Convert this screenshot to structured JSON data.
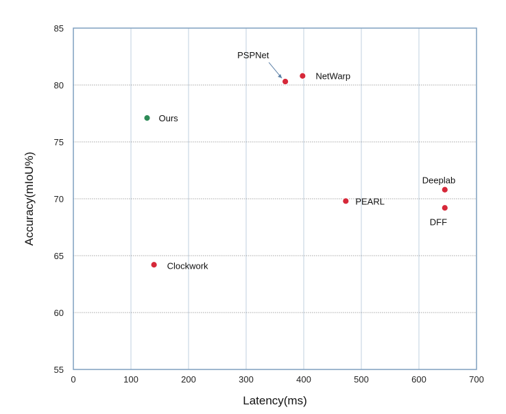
{
  "chart_data": {
    "type": "scatter",
    "title": "",
    "xlabel": "Latency(ms)",
    "ylabel": "Accuracy(mIoU%)",
    "xlim": [
      0,
      700
    ],
    "ylim": [
      55,
      85
    ],
    "xticks": [
      0,
      100,
      200,
      300,
      400,
      500,
      600,
      700
    ],
    "yticks": [
      55,
      60,
      65,
      70,
      75,
      80,
      85
    ],
    "grid": true,
    "points": [
      {
        "label": "Ours",
        "x": 128,
        "y": 77.1,
        "color": "#2e8b57"
      },
      {
        "label": "PSPNet",
        "x": 368,
        "y": 80.3,
        "color": "#d62839"
      },
      {
        "label": "NetWarp",
        "x": 398,
        "y": 80.8,
        "color": "#d62839"
      },
      {
        "label": "PEARL",
        "x": 473,
        "y": 69.8,
        "color": "#d62839"
      },
      {
        "label": "Deeplab",
        "x": 645,
        "y": 70.8,
        "color": "#d62839"
      },
      {
        "label": "DFF",
        "x": 645,
        "y": 69.2,
        "color": "#d62839"
      },
      {
        "label": "Clockwork",
        "x": 140,
        "y": 64.2,
        "color": "#d62839"
      }
    ]
  }
}
